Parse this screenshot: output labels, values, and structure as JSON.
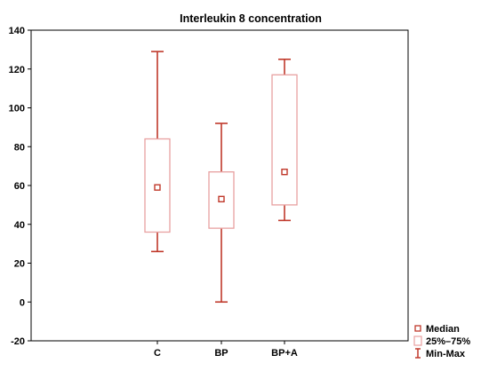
{
  "chart_data": {
    "type": "boxplot",
    "title": "Interleukin 8 concentration",
    "xlabel": "",
    "ylabel": "",
    "categories": [
      "C",
      "BP",
      "BP+A"
    ],
    "ylim": [
      -20,
      140
    ],
    "yticks": [
      -20,
      0,
      20,
      40,
      60,
      80,
      100,
      120,
      140
    ],
    "grid": false,
    "legend_position": "bottom-right",
    "series": [
      {
        "category": "C",
        "min": 26,
        "q1": 36,
        "median": 59,
        "q3": 84,
        "max": 129
      },
      {
        "category": "BP",
        "min": 0,
        "q1": 38,
        "median": 53,
        "q3": 67,
        "max": 92
      },
      {
        "category": "BP+A",
        "min": 42,
        "q1": 50,
        "median": 67,
        "q3": 117,
        "max": 125
      }
    ],
    "legend": [
      {
        "key": "median",
        "label": "Median"
      },
      {
        "key": "iqr",
        "label": "25%–75%"
      },
      {
        "key": "minmax",
        "label": "Min-Max"
      }
    ],
    "colors": {
      "whisker": "#c0392b",
      "box_edge": "#e8a0a0",
      "median_marker": "#c0392b",
      "axes": "#000000"
    }
  }
}
